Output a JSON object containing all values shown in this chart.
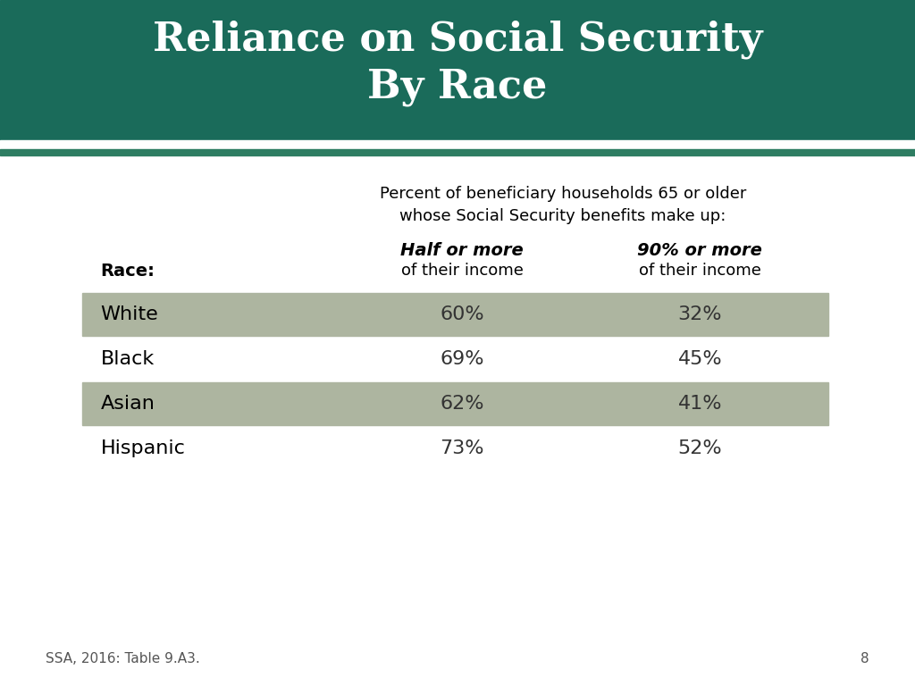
{
  "title_line1": "Reliance on Social Security",
  "title_line2": "By Race",
  "title_bg_color": "#1a6b5a",
  "title_text_color": "#ffffff",
  "header_desc_line1": "Percent of beneficiary households 65 or older",
  "header_desc_line2": "whose Social Security benefits make up:",
  "col1_header_bold": "Half or more",
  "col1_header_sub": "of their income",
  "col2_header_bold": "90% or more",
  "col2_header_sub": "of their income",
  "race_label": "Race:",
  "races": [
    "White",
    "Black",
    "Asian",
    "Hispanic"
  ],
  "half_or_more": [
    "60%",
    "69%",
    "62%",
    "73%"
  ],
  "ninety_or_more": [
    "32%",
    "45%",
    "41%",
    "52%"
  ],
  "shaded_rows": [
    0,
    2
  ],
  "row_shade_color": "#adb5a0",
  "white_bg": "#ffffff",
  "footer_text": "SSA, 2016: Table 9.A3.",
  "page_number": "8",
  "thin_stripe_color": "#2e7d62"
}
